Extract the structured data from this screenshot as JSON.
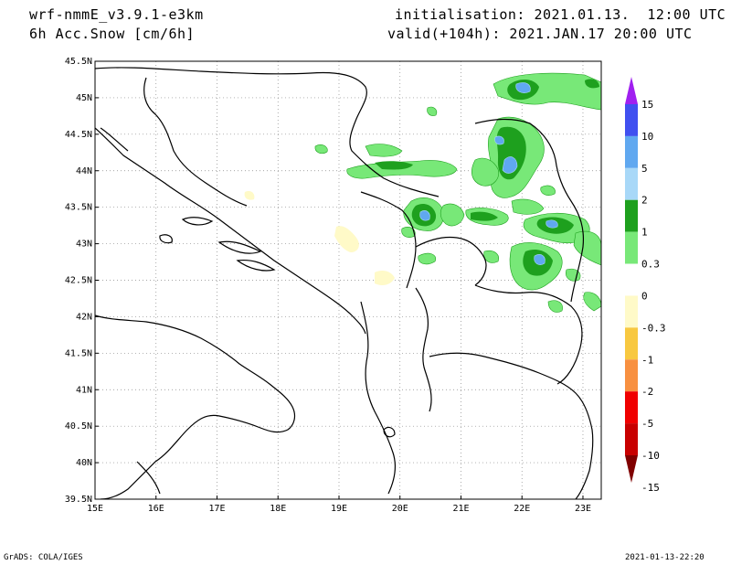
{
  "header": {
    "model": "wrf-nmmE_v3.9.1-e3km",
    "field": "6h Acc.Snow [cm/6h]",
    "init": "initialisation: 2021.01.13.  12:00 UTC",
    "valid": "valid(+104h): 2021.JAN.17 20:00 UTC"
  },
  "footer": {
    "left": "GrADS: COLA/IGES",
    "right": "2021-01-13-22:20"
  },
  "map": {
    "lat_labels": [
      "45.5N",
      "45N",
      "44.5N",
      "44N",
      "43.5N",
      "43N",
      "42.5N",
      "42N",
      "41.5N",
      "41N",
      "40.5N",
      "40N",
      "39.5N"
    ],
    "lat_values": [
      45.5,
      45,
      44.5,
      44,
      43.5,
      43,
      42.5,
      42,
      41.5,
      41,
      40.5,
      40,
      39.5
    ],
    "lon_labels": [
      "15E",
      "16E",
      "17E",
      "18E",
      "19E",
      "20E",
      "21E",
      "22E",
      "23E"
    ],
    "lon_values": [
      15,
      16,
      17,
      18,
      19,
      20,
      21,
      22,
      23
    ],
    "lon_range": [
      15,
      23.3
    ],
    "lat_range": [
      39.5,
      45.5
    ],
    "grid": true,
    "line_color": "#000000"
  },
  "colorbar": {
    "labels": [
      "15",
      "10",
      "5",
      "2",
      "1",
      "0.3",
      "0",
      "-0.3",
      "-1",
      "-2",
      "-5",
      "-10",
      "-15"
    ],
    "colors": [
      "#a020f0",
      "#4050f0",
      "#60a8f0",
      "#a8d8f8",
      "#1ea01e",
      "#78e878",
      "#ffffff",
      "#fffac8",
      "#f8c840",
      "#f89040",
      "#f00000",
      "#c80000",
      "#800000"
    ]
  },
  "snow_colors": {
    "light": "#78e878",
    "medium": "#1ea01e",
    "blue_light": "#a8d8f8",
    "blue": "#60a8f0",
    "neg_light": "#fffac8"
  }
}
